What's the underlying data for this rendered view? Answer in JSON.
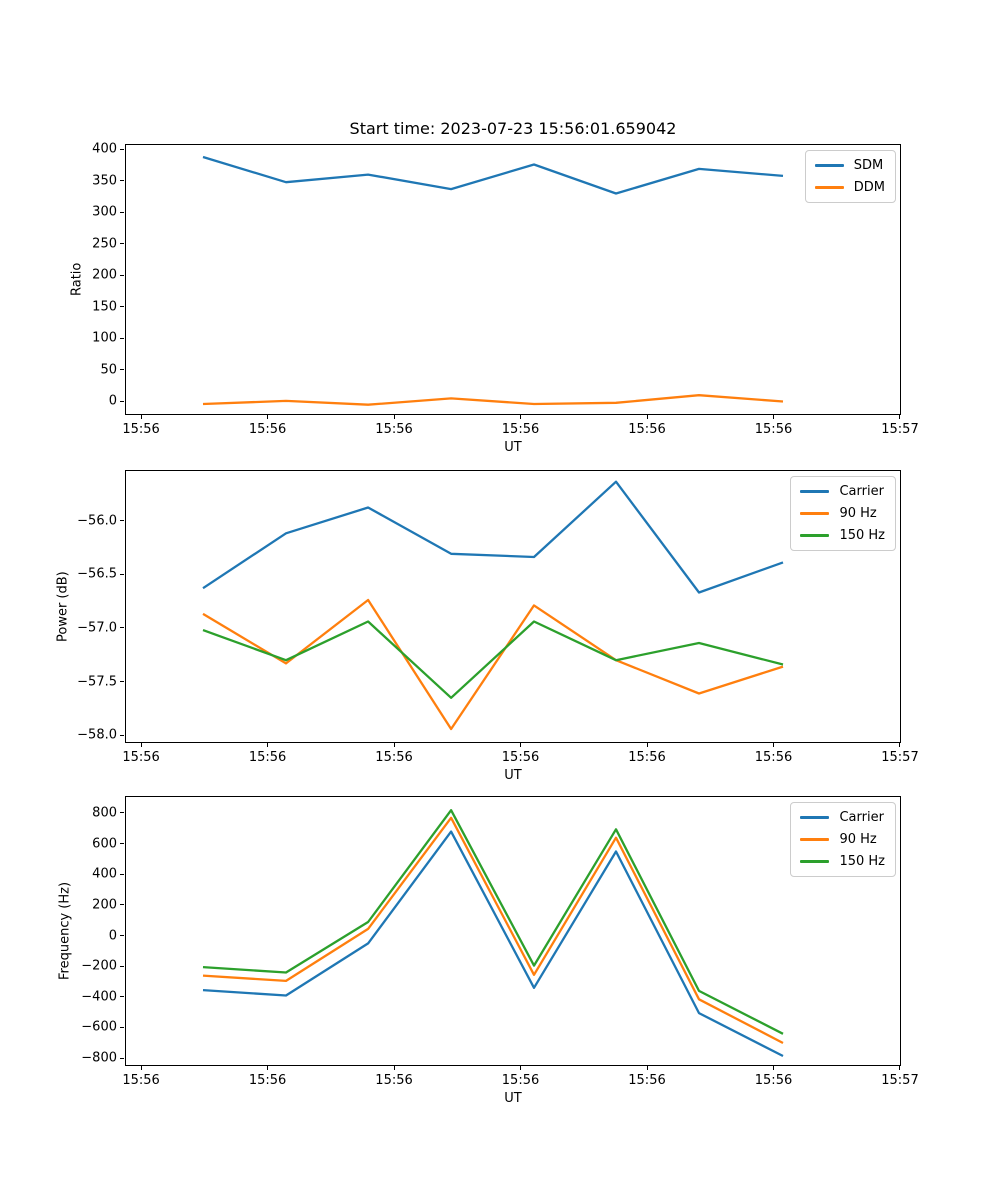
{
  "figure": {
    "title": "Start time: 2023-07-23 15:56:01.659042"
  },
  "colors": {
    "blue": "#1f77b4",
    "orange": "#ff7f0e",
    "green": "#2ca02c"
  },
  "chart_data": [
    {
      "type": "line",
      "name": "ratio",
      "ylabel": "Ratio",
      "xlabel": "UT",
      "grid": false,
      "legend_position": "upper right",
      "xlim": [
        -1.27,
        60.08
      ],
      "ylim": [
        -22,
        408
      ],
      "xticks": [
        0,
        10,
        20,
        30,
        40,
        50,
        60
      ],
      "xticklabels": [
        "15:56",
        "15:56",
        "15:56",
        "15:56",
        "15:56",
        "15:56",
        "15:57"
      ],
      "yticks": [
        0,
        50,
        100,
        150,
        200,
        250,
        300,
        350,
        400
      ],
      "yticklabels": [
        "0",
        "50",
        "100",
        "150",
        "200",
        "250",
        "300",
        "350",
        "400"
      ],
      "x": [
        4.82,
        11.38,
        17.87,
        24.43,
        30.99,
        37.47,
        44.03,
        50.67
      ],
      "series": [
        {
          "name": "SDM",
          "color": "blue",
          "values": [
            389,
            349,
            361,
            338,
            377,
            331,
            370,
            359
          ]
        },
        {
          "name": "DDM",
          "color": "orange",
          "values": [
            -3,
            2,
            -4,
            6,
            -3,
            -1,
            11,
            1
          ]
        }
      ]
    },
    {
      "type": "line",
      "name": "power",
      "ylabel": "Power (dB)",
      "xlabel": "UT",
      "grid": false,
      "legend_position": "upper right",
      "xlim": [
        -1.27,
        60.08
      ],
      "ylim": [
        -58.07,
        -55.53
      ],
      "xticks": [
        0,
        10,
        20,
        30,
        40,
        50,
        60
      ],
      "xticklabels": [
        "15:56",
        "15:56",
        "15:56",
        "15:56",
        "15:56",
        "15:56",
        "15:57"
      ],
      "yticks": [
        -58.0,
        -57.5,
        -57.0,
        -56.5,
        -56.0
      ],
      "yticklabels": [
        "−58.0",
        "−57.5",
        "−57.0",
        "−56.5",
        "−56.0"
      ],
      "x": [
        4.82,
        11.38,
        17.87,
        24.43,
        30.99,
        37.47,
        44.03,
        50.67
      ],
      "series": [
        {
          "name": "Carrier",
          "color": "blue",
          "values": [
            -56.62,
            -56.11,
            -55.87,
            -56.3,
            -56.33,
            -55.63,
            -56.66,
            -56.38
          ]
        },
        {
          "name": "90 Hz",
          "color": "orange",
          "values": [
            -56.86,
            -57.32,
            -56.73,
            -57.93,
            -56.78,
            -57.29,
            -57.6,
            -57.35
          ]
        },
        {
          "name": "150 Hz",
          "color": "green",
          "values": [
            -57.01,
            -57.29,
            -56.93,
            -57.64,
            -56.93,
            -57.29,
            -57.13,
            -57.33
          ]
        }
      ]
    },
    {
      "type": "line",
      "name": "frequency",
      "ylabel": "Frequency (Hz)",
      "xlabel": "UT",
      "grid": false,
      "legend_position": "upper right",
      "xlim": [
        -1.27,
        60.08
      ],
      "ylim": [
        -852,
        911
      ],
      "xticks": [
        0,
        10,
        20,
        30,
        40,
        50,
        60
      ],
      "xticklabels": [
        "15:56",
        "15:56",
        "15:56",
        "15:56",
        "15:56",
        "15:56",
        "15:57"
      ],
      "yticks": [
        -800,
        -600,
        -400,
        -200,
        0,
        200,
        400,
        600,
        800
      ],
      "yticklabels": [
        "−800",
        "−600",
        "−400",
        "−200",
        "0",
        "200",
        "400",
        "600",
        "800"
      ],
      "x": [
        4.82,
        11.38,
        17.87,
        24.43,
        30.99,
        37.47,
        44.03,
        50.67
      ],
      "series": [
        {
          "name": "Carrier",
          "color": "blue",
          "values": [
            -350,
            -385,
            -45,
            685,
            -335,
            555,
            -500,
            -780
          ]
        },
        {
          "name": "90 Hz",
          "color": "orange",
          "values": [
            -255,
            -290,
            50,
            775,
            -250,
            645,
            -410,
            -695
          ]
        },
        {
          "name": "150 Hz",
          "color": "green",
          "values": [
            -200,
            -235,
            95,
            825,
            -190,
            700,
            -355,
            -635
          ]
        }
      ]
    }
  ]
}
